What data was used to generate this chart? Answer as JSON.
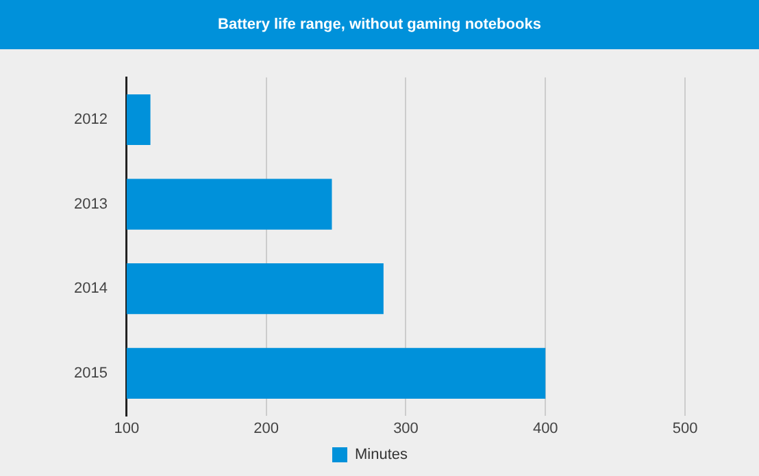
{
  "chart_data": {
    "type": "bar",
    "orientation": "horizontal",
    "title": "Battery life range, without gaming notebooks",
    "categories": [
      "2012",
      "2013",
      "2014",
      "2015"
    ],
    "series": [
      {
        "name": "Minutes",
        "color": "#0091da",
        "values": [
          117,
          247,
          284,
          400
        ]
      }
    ],
    "xlim": [
      100,
      500
    ],
    "xticks": [
      100,
      200,
      300,
      400,
      500
    ],
    "grid": "x",
    "legend": "bottom"
  }
}
